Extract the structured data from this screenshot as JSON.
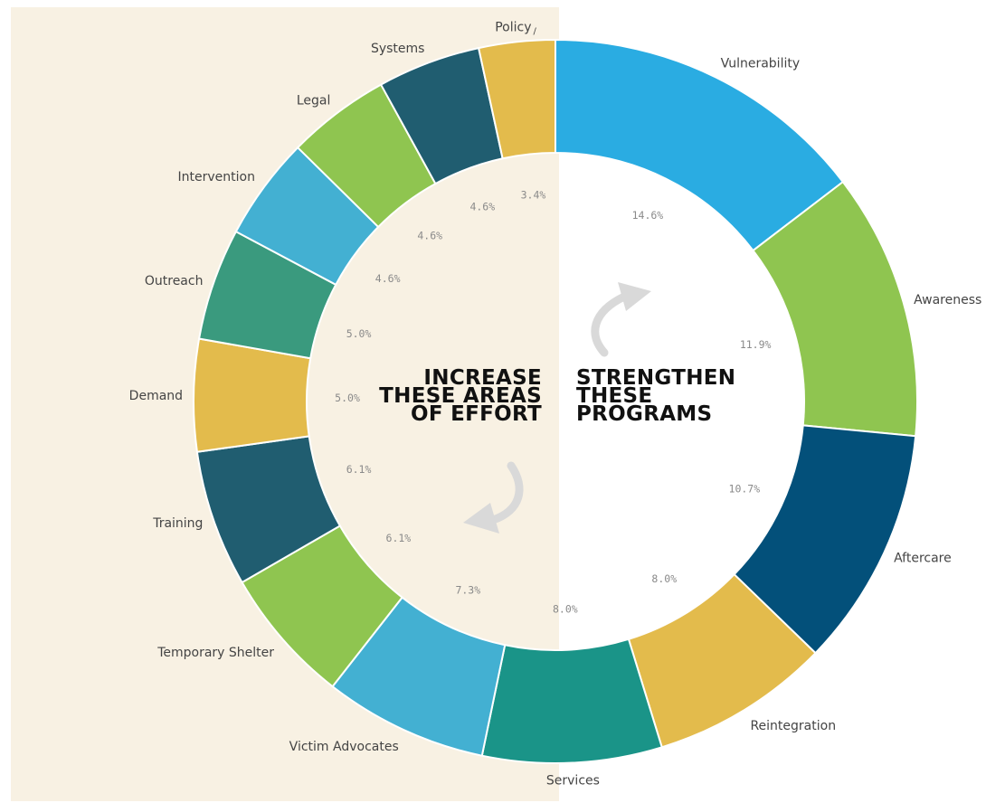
{
  "colors": {
    "left_panel": "#f8f1e3",
    "blue": "#2aace2",
    "light_blue": "#43b0d2",
    "green": "#8fc550",
    "dark_navy": "#03507a",
    "dark_teal": "#205d70",
    "yellow": "#e3bb4c",
    "teal": "#3a9a7e",
    "services": "#1a9488",
    "arrow": "#d9d9d9"
  },
  "center_text": {
    "left": [
      "INCREASE",
      "THESE AREAS",
      "OF EFFORT"
    ],
    "right": [
      "STRENGTHEN",
      "THESE",
      "PROGRAMS"
    ]
  },
  "icons": {
    "left_arrow": "curved-arrow-down-left-icon",
    "right_arrow": "curved-arrow-up-right-icon"
  },
  "chart_data": {
    "type": "pie",
    "style": "donut",
    "direction": "clockwise from top",
    "categories": [
      "Vulnerability",
      "Awareness",
      "Aftercare",
      "Reintegration",
      "Services",
      "Victim Advocates",
      "Temporary Shelter",
      "Training",
      "Demand",
      "Outreach",
      "Intervention",
      "Legal",
      "Systems",
      "Policy"
    ],
    "value_labels": [
      "14.6%",
      "11.9%",
      "10.7%",
      "8.0%",
      "8.0%",
      "7.3%",
      "6.1%",
      "6.1%",
      "5.0%",
      "5.0%",
      "4.6%",
      "4.6%",
      "4.6%",
      "3.4%"
    ],
    "values": [
      14.6,
      11.9,
      10.7,
      8.0,
      8.0,
      7.3,
      6.1,
      6.1,
      5.0,
      5.0,
      4.6,
      4.6,
      4.6,
      3.4
    ],
    "colors": [
      "#2aace2",
      "#8fc550",
      "#03507a",
      "#e3bb4c",
      "#1a9488",
      "#43b0d2",
      "#8fc550",
      "#205d70",
      "#e3bb4c",
      "#3a9a7e",
      "#43b0d2",
      "#8fc550",
      "#205d70",
      "#e3bb4c"
    ],
    "policy_label_suffix": "/"
  }
}
